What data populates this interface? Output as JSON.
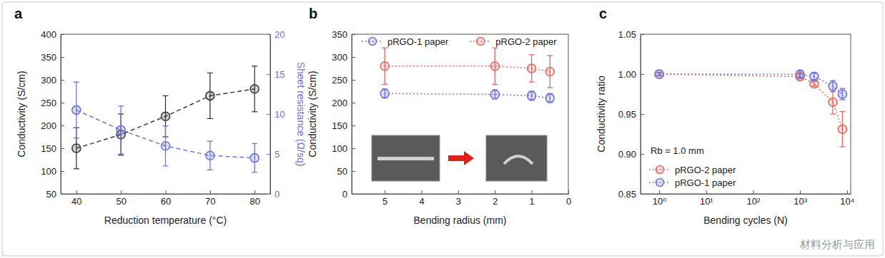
{
  "chart_data": [
    {
      "panel_label": "a",
      "type": "line",
      "marker": "circle",
      "line_style": "dashed",
      "x": [
        40,
        50,
        60,
        70,
        80
      ],
      "xlabel": "Reduction temperature (°C)",
      "ylabel": "Conductivity (S/cm)",
      "y2label": "Sheet resistance (Ω/sq)",
      "xlim": [
        36.5,
        83.5
      ],
      "xticks": [
        40,
        50,
        60,
        70,
        80
      ],
      "ylim": [
        50,
        400
      ],
      "yticks": [
        50,
        100,
        150,
        200,
        250,
        300,
        350,
        400
      ],
      "y2lim": [
        0,
        20
      ],
      "y2ticks": [
        0,
        5,
        10,
        15,
        20
      ],
      "series": [
        {
          "color": "#3a3a3a",
          "values": [
            150,
            180,
            220,
            265,
            280
          ],
          "errors": [
            45,
            45,
            45,
            50,
            50
          ]
        },
        {
          "color": "#6f74d8",
          "axis": "y2",
          "values": [
            10.5,
            8,
            6,
            4.8,
            4.5
          ],
          "errors": [
            3.5,
            3,
            2.5,
            1.8,
            1.8
          ]
        }
      ]
    },
    {
      "panel_label": "b",
      "type": "line",
      "marker": "circle",
      "line_style": "dotted",
      "legend": "top",
      "x": [
        5,
        2,
        1,
        0.5
      ],
      "xlabel": "Bending radius (mm)",
      "ylabel": "Conductivity (S/cm)",
      "xlim": [
        5.9,
        0
      ],
      "xticks": [
        5,
        4,
        3,
        2,
        1,
        0
      ],
      "ylim": [
        0,
        350
      ],
      "yticks": [
        0,
        50,
        100,
        150,
        200,
        250,
        300,
        350
      ],
      "series": [
        {
          "name": "pRGO-1 paper",
          "color": "#6f74d8",
          "values": [
            220,
            218,
            215,
            210
          ],
          "errors": [
            10,
            10,
            10,
            10
          ]
        },
        {
          "name": "pRGO-2 paper",
          "color": "#e06a5e",
          "values": [
            280,
            280,
            275,
            268
          ],
          "errors": [
            40,
            40,
            30,
            35
          ]
        }
      ]
    },
    {
      "panel_label": "c",
      "type": "line",
      "marker": "circle",
      "line_style": "dotted",
      "legend": "lower left",
      "log": "x",
      "annotations": [
        "Rb = 1.0 mm"
      ],
      "x": [
        1,
        1000,
        2000,
        5000,
        8000
      ],
      "xlabel": "Bending cycles (N)",
      "ylabel": "Conductivity ratio",
      "xlim": [
        0.4,
        12000
      ],
      "xticks": [
        {
          "value": 1,
          "label": "10⁰"
        },
        {
          "value": 10,
          "label": "10¹"
        },
        {
          "value": 100,
          "label": "10²"
        },
        {
          "value": 1000,
          "label": "10³"
        },
        {
          "value": 10000,
          "label": "10⁴"
        }
      ],
      "ylim": [
        0.85,
        1.05
      ],
      "yticks": [
        0.85,
        {
          "value": 0.9,
          "label": "0.90"
        },
        0.95,
        {
          "value": 1,
          "label": "1.00"
        },
        1.05
      ],
      "series": [
        {
          "name": "pRGO-2 paper",
          "color": "#e06a5e",
          "values": [
            1.0,
            0.997,
            0.988,
            0.965,
            0.931
          ],
          "errors": [
            0.002,
            0.003,
            0.003,
            0.015,
            0.022
          ]
        },
        {
          "name": "pRGO-1 paper",
          "color": "#6f74d8",
          "values": [
            1.0,
            1.0,
            0.997,
            0.985,
            0.975
          ],
          "errors": [
            0.002,
            0.004,
            0.004,
            0.007,
            0.007
          ]
        }
      ]
    }
  ],
  "watermark": "材料分析与应用"
}
